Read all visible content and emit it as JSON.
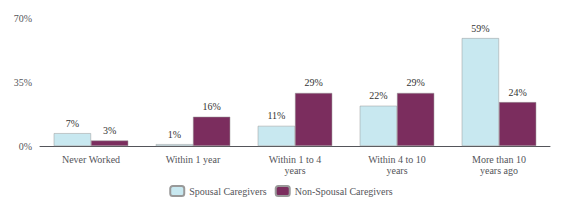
{
  "chart_data": {
    "type": "bar",
    "categories": [
      "Never Worked",
      "Within 1 year",
      "Within 1 to 4\nyears",
      "Within 4 to 10\nyears",
      "More than 10\nyears ago"
    ],
    "series": [
      {
        "name": "Spousal Caregivers",
        "color": "#c8e8f0",
        "values": [
          7,
          1,
          11,
          22,
          59
        ],
        "value_labels": [
          "7%",
          "1%",
          "11%",
          "22%",
          "59%"
        ]
      },
      {
        "name": "Non-Spousal Caregivers",
        "color": "#7b2d5e",
        "values": [
          3,
          16,
          29,
          29,
          24
        ],
        "value_labels": [
          "3%",
          "16%",
          "29%",
          "29%",
          "24%"
        ]
      }
    ],
    "ylim": [
      0,
      70
    ],
    "yticks": [
      {
        "value": 0,
        "label": "0%"
      },
      {
        "value": 35,
        "label": "35%"
      },
      {
        "value": 70,
        "label": "70%"
      }
    ],
    "grid": false,
    "data_labels": true,
    "legend": "bottom"
  }
}
